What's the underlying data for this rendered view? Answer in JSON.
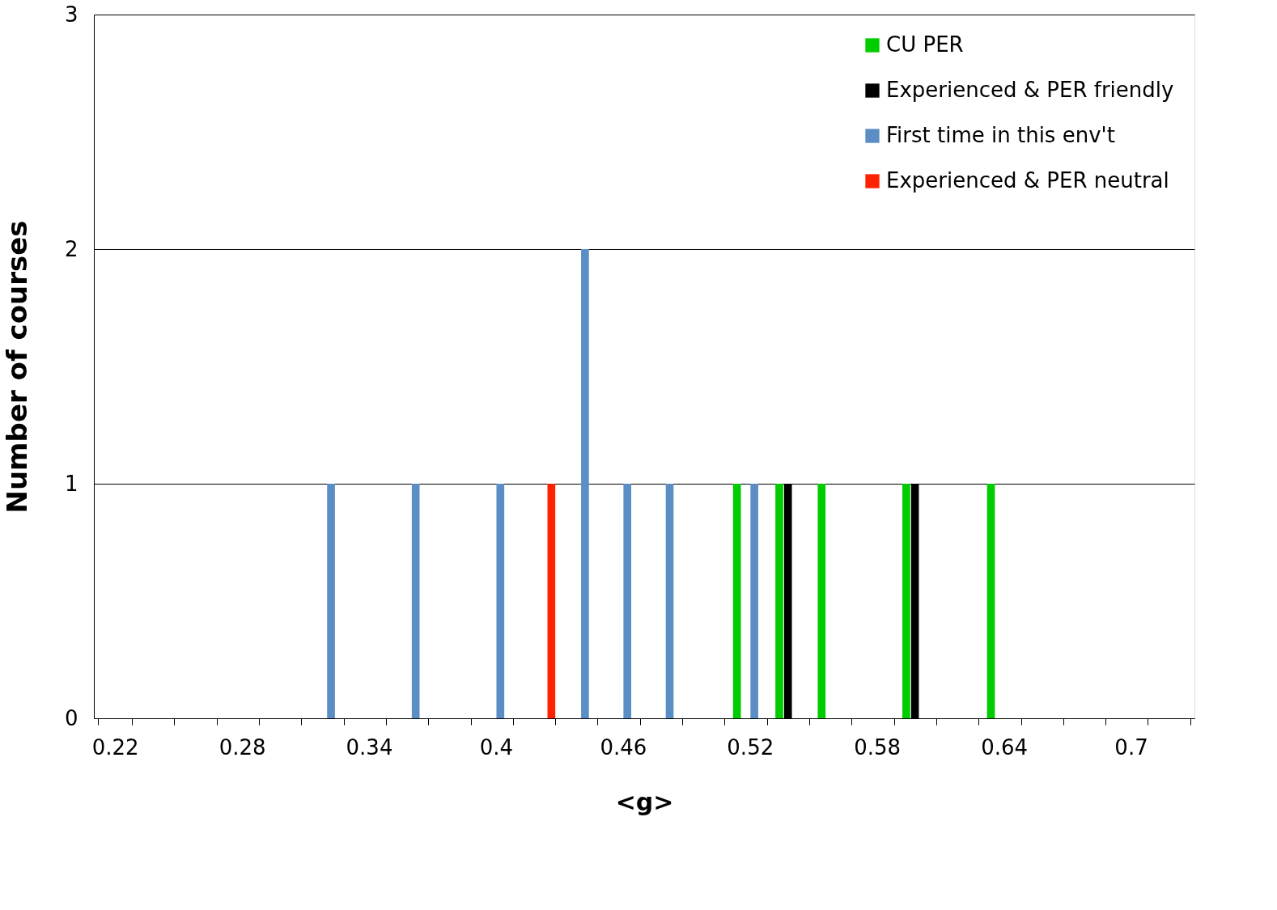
{
  "chart_data": {
    "type": "bar",
    "xlabel": "<g>",
    "ylabel": "Number of courses",
    "categories": [
      "0.22",
      null,
      null,
      "0.28",
      null,
      null,
      "0.34",
      null,
      null,
      "0.4",
      null,
      null,
      "0.46",
      null,
      null,
      "0.52",
      null,
      null,
      "0.58",
      null,
      null,
      "0.64",
      null,
      null,
      "0.7",
      null
    ],
    "series": [
      {
        "name": "CU PER",
        "color": "#00cc00",
        "values": [
          0,
          0,
          0,
          0,
          0,
          0,
          0,
          0,
          0,
          0,
          0,
          0,
          0,
          0,
          0,
          1,
          1,
          1,
          0,
          1,
          0,
          1,
          0,
          0,
          0,
          0
        ]
      },
      {
        "name": "Experienced & PER friendly",
        "color": "#000000",
        "values": [
          0,
          0,
          0,
          0,
          0,
          0,
          0,
          0,
          0,
          0,
          0,
          0,
          0,
          0,
          0,
          0,
          1,
          0,
          0,
          1,
          0,
          0,
          0,
          0,
          0,
          0
        ]
      },
      {
        "name": "First time in this env't",
        "color": "#5b8ec4",
        "values": [
          0,
          0,
          0,
          0,
          0,
          1,
          0,
          1,
          0,
          1,
          0,
          2,
          1,
          1,
          0,
          1,
          0,
          0,
          0,
          0,
          0,
          0,
          0,
          0,
          0,
          0
        ]
      },
      {
        "name": "Experienced & PER neutral",
        "color": "#ff2200",
        "values": [
          0,
          0,
          0,
          0,
          0,
          0,
          0,
          0,
          0,
          0,
          1,
          0,
          0,
          0,
          0,
          0,
          0,
          0,
          0,
          0,
          0,
          0,
          0,
          0,
          0,
          0
        ]
      }
    ],
    "ylim": [
      0,
      3
    ],
    "yticks": [
      0,
      1,
      2,
      3
    ],
    "grid": "y",
    "legend": "top right"
  }
}
